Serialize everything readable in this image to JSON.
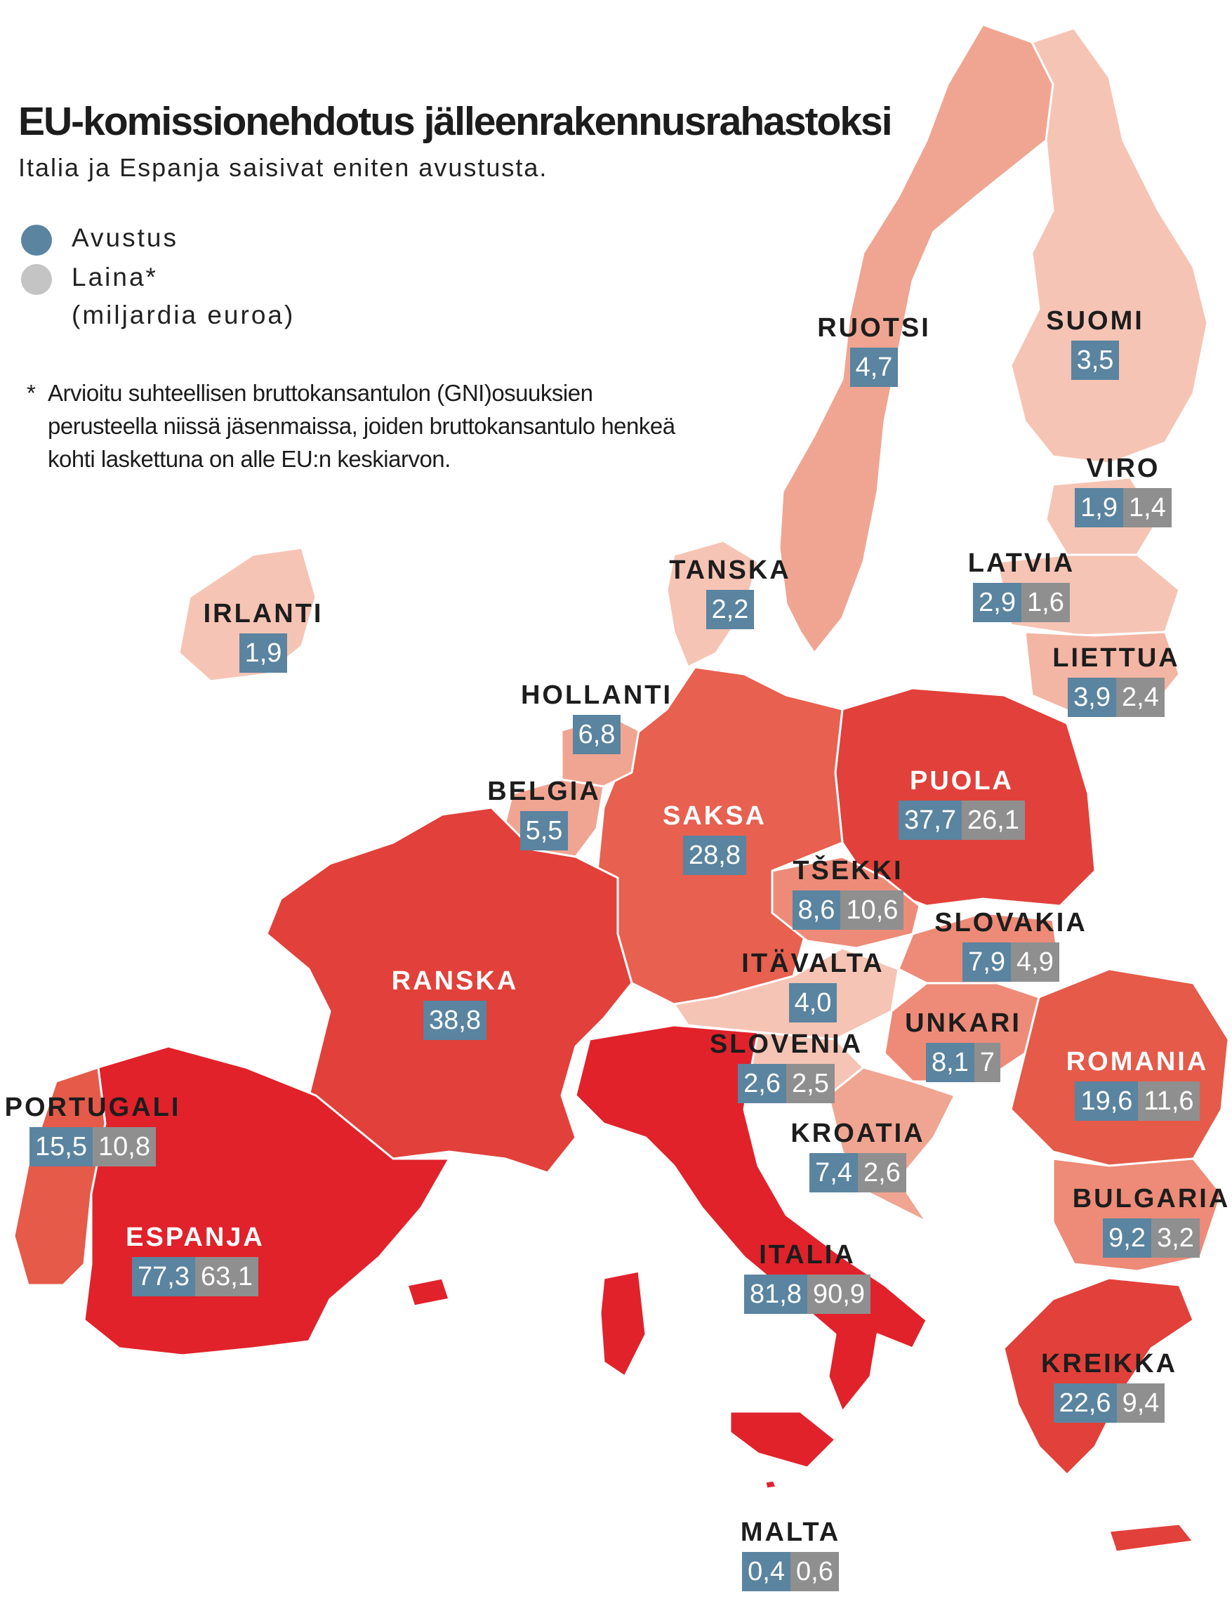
{
  "title": "EU-komissionehdotus jälleenrakennusrahastoksi",
  "subtitle": "Italia ja Espanja saisivat eniten avustusta.",
  "legend": {
    "grant_label": "Avustus",
    "loan_label": "Laina*",
    "unit_label": "(miljardia euroa)",
    "grant_color": "#5a84a0",
    "loan_color": "#8f8f8f"
  },
  "footnote": {
    "marker": "*",
    "text": "Arvioitu suhteellisen bruttokansantulon (GNI)osuuksien perusteella niissä jäsenmaissa, joiden bruttokansantulo henkeä kohti laskettuna on alle EU:n keskiarvon."
  },
  "countries": [
    {
      "id": "ruotsi",
      "name": "RUOTSI",
      "grant": "4,7",
      "loan": null,
      "fill": "#f0a592"
    },
    {
      "id": "suomi",
      "name": "SUOMI",
      "grant": "3,5",
      "loan": null,
      "fill": "#f6c4b5"
    },
    {
      "id": "viro",
      "name": "VIRO",
      "grant": "1,9",
      "loan": "1,4",
      "fill": "#f6c4b5"
    },
    {
      "id": "latvia",
      "name": "LATVIA",
      "grant": "2,9",
      "loan": "1,6",
      "fill": "#f6c4b5"
    },
    {
      "id": "liettua",
      "name": "LIETTUA",
      "grant": "3,9",
      "loan": "2,4",
      "fill": "#f3b5a4"
    },
    {
      "id": "tanska",
      "name": "TANSKA",
      "grant": "2,2",
      "loan": null,
      "fill": "#f6c4b5"
    },
    {
      "id": "irlanti",
      "name": "IRLANTI",
      "grant": "1,9",
      "loan": null,
      "fill": "#f6c4b5"
    },
    {
      "id": "hollanti",
      "name": "HOLLANTI",
      "grant": "6,8",
      "loan": null,
      "fill": "#f0a592"
    },
    {
      "id": "belgia",
      "name": "BELGIA",
      "grant": "5,5",
      "loan": null,
      "fill": "#f0a592"
    },
    {
      "id": "saksa",
      "name": "SAKSA",
      "grant": "28,8",
      "loan": null,
      "fill": "#e8604f"
    },
    {
      "id": "puola",
      "name": "PUOLA",
      "grant": "37,7",
      "loan": "26,1",
      "fill": "#e2403a"
    },
    {
      "id": "tsekki",
      "name": "TŠEKKI",
      "grant": "8,6",
      "loan": "10,6",
      "fill": "#ed8b78"
    },
    {
      "id": "slovakia",
      "name": "SLOVAKIA",
      "grant": "7,9",
      "loan": "4,9",
      "fill": "#ed8b78"
    },
    {
      "id": "itavalta",
      "name": "ITÄVALTA",
      "grant": "4,0",
      "loan": null,
      "fill": "#f6c4b5"
    },
    {
      "id": "ranska",
      "name": "RANSKA",
      "grant": "38,8",
      "loan": null,
      "fill": "#e2403a"
    },
    {
      "id": "unkari",
      "name": "UNKARI",
      "grant": "8,1",
      "loan": "7",
      "fill": "#ed8b78"
    },
    {
      "id": "slovenia",
      "name": "SLOVENIA",
      "grant": "2,6",
      "loan": "2,5",
      "fill": "#f6c4b5"
    },
    {
      "id": "romania",
      "name": "ROMANIA",
      "grant": "19,6",
      "loan": "11,6",
      "fill": "#e55a49"
    },
    {
      "id": "portugali",
      "name": "PORTUGALI",
      "grant": "15,5",
      "loan": "10,8",
      "fill": "#e55a49"
    },
    {
      "id": "kroatia",
      "name": "KROATIA",
      "grant": "7,4",
      "loan": "2,6",
      "fill": "#f0a592"
    },
    {
      "id": "espanja",
      "name": "ESPANJA",
      "grant": "77,3",
      "loan": "63,1",
      "fill": "#e1222b"
    },
    {
      "id": "bulgaria",
      "name": "BULGARIA",
      "grant": "9,2",
      "loan": "3,2",
      "fill": "#ed8b78"
    },
    {
      "id": "italia",
      "name": "ITALIA",
      "grant": "81,8",
      "loan": "90,9",
      "fill": "#e1222b"
    },
    {
      "id": "kreikka",
      "name": "KREIKKA",
      "grant": "22,6",
      "loan": "9,4",
      "fill": "#e2403a"
    },
    {
      "id": "malta",
      "name": "MALTA",
      "grant": "0,4",
      "loan": "0,6",
      "fill": "#e1222b"
    }
  ]
}
